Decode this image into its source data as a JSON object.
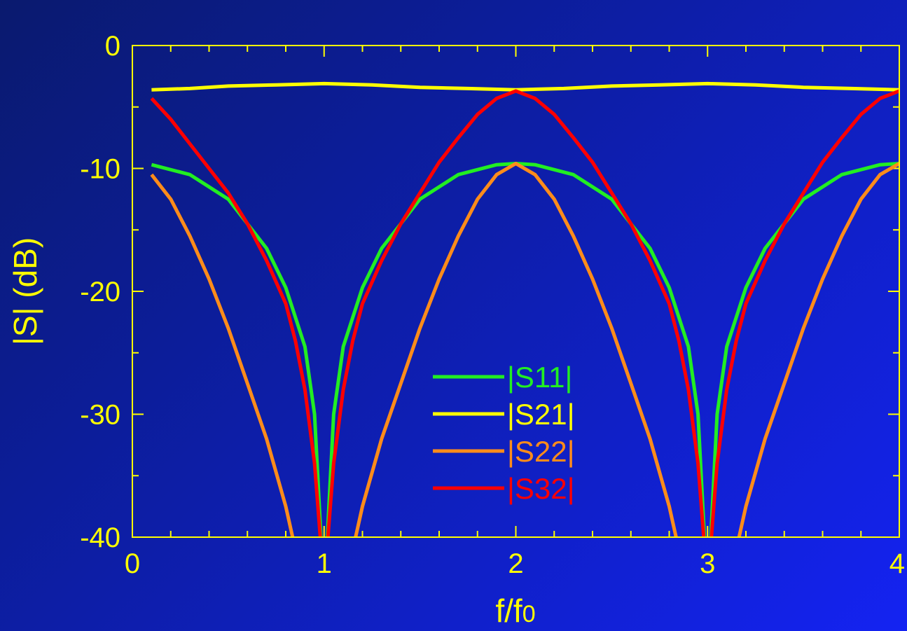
{
  "chart_data": {
    "type": "line",
    "title": "",
    "xlabel": "f/f",
    "xlabel_sub": "0",
    "ylabel": "|S| (dB)",
    "xlim": [
      0,
      4
    ],
    "ylim": [
      -40,
      0
    ],
    "x_ticks": [
      0,
      1,
      2,
      3,
      4
    ],
    "x_tick_labels": [
      "0",
      "1",
      "2",
      "3",
      "4"
    ],
    "y_ticks": [
      0,
      -10,
      -20,
      -30,
      -40
    ],
    "y_tick_labels": [
      "0",
      "-10",
      "-20",
      "-30",
      "-40"
    ],
    "grid": false,
    "legend_position": "center",
    "colors": {
      "axis": "#ffff00",
      "s11": "#22ee22",
      "s21": "#ffff00",
      "s22": "#ff8c1a",
      "s32": "#ff0000"
    },
    "series": [
      {
        "name": "|S11|",
        "key": "s11",
        "x": [
          0.1,
          0.3,
          0.5,
          0.7,
          0.8,
          0.9,
          0.95,
          1.0,
          1.05,
          1.1,
          1.2,
          1.3,
          1.5,
          1.7,
          1.9,
          2.0,
          2.1,
          2.3,
          2.5,
          2.7,
          2.8,
          2.9,
          2.95,
          3.0,
          3.05,
          3.1,
          3.2,
          3.3,
          3.5,
          3.7,
          3.9,
          4.0
        ],
        "y": [
          -9.7,
          -10.5,
          -12.5,
          -16.5,
          -19.7,
          -24.5,
          -30.0,
          -45.0,
          -30.0,
          -24.5,
          -19.7,
          -16.5,
          -12.5,
          -10.5,
          -9.7,
          -9.6,
          -9.7,
          -10.5,
          -12.5,
          -16.5,
          -19.7,
          -24.5,
          -30.0,
          -45.0,
          -30.0,
          -24.5,
          -19.7,
          -16.5,
          -12.5,
          -10.5,
          -9.7,
          -9.6
        ]
      },
      {
        "name": "|S21|",
        "key": "s21",
        "x": [
          0.1,
          0.3,
          0.5,
          0.75,
          1.0,
          1.25,
          1.5,
          1.75,
          2.0,
          2.25,
          2.5,
          2.75,
          3.0,
          3.25,
          3.5,
          3.75,
          4.0
        ],
        "y": [
          -3.6,
          -3.5,
          -3.3,
          -3.2,
          -3.1,
          -3.2,
          -3.4,
          -3.5,
          -3.6,
          -3.5,
          -3.3,
          -3.2,
          -3.1,
          -3.2,
          -3.4,
          -3.5,
          -3.6
        ]
      },
      {
        "name": "|S22|",
        "key": "s22",
        "x": [
          0.1,
          0.2,
          0.3,
          0.4,
          0.5,
          0.6,
          0.7,
          0.8,
          0.85,
          1.15,
          1.2,
          1.3,
          1.4,
          1.5,
          1.6,
          1.7,
          1.8,
          1.9,
          2.0,
          2.1,
          2.2,
          2.3,
          2.4,
          2.5,
          2.6,
          2.7,
          2.8,
          2.85,
          3.15,
          3.2,
          3.3,
          3.4,
          3.5,
          3.6,
          3.7,
          3.8,
          3.9,
          4.0
        ],
        "y": [
          -10.5,
          -12.5,
          -15.5,
          -19.0,
          -23.0,
          -27.5,
          -32.0,
          -37.5,
          -41.0,
          -41.0,
          -37.5,
          -32.0,
          -27.5,
          -23.0,
          -19.0,
          -15.5,
          -12.5,
          -10.5,
          -9.6,
          -10.5,
          -12.5,
          -15.5,
          -19.0,
          -23.0,
          -27.5,
          -32.0,
          -37.5,
          -41.0,
          -41.0,
          -37.5,
          -32.0,
          -27.5,
          -23.0,
          -19.0,
          -15.5,
          -12.5,
          -10.5,
          -9.6
        ]
      },
      {
        "name": "|S32|",
        "key": "s32",
        "x": [
          0.1,
          0.2,
          0.3,
          0.4,
          0.5,
          0.6,
          0.7,
          0.8,
          0.85,
          0.9,
          0.95,
          0.98,
          1.0,
          1.02,
          1.05,
          1.1,
          1.15,
          1.2,
          1.3,
          1.4,
          1.5,
          1.6,
          1.7,
          1.8,
          1.9,
          2.0,
          2.1,
          2.2,
          2.3,
          2.4,
          2.5,
          2.6,
          2.7,
          2.8,
          2.85,
          2.9,
          2.95,
          2.98,
          3.0,
          3.02,
          3.05,
          3.1,
          3.15,
          3.2,
          3.3,
          3.4,
          3.5,
          3.6,
          3.7,
          3.8,
          3.9,
          4.0
        ],
        "y": [
          -4.3,
          -6.0,
          -8.0,
          -10.0,
          -12.0,
          -14.5,
          -17.5,
          -21.0,
          -24.0,
          -28.0,
          -34.0,
          -40.0,
          -45.0,
          -40.0,
          -34.0,
          -28.0,
          -24.0,
          -21.0,
          -17.5,
          -14.5,
          -12.0,
          -9.5,
          -7.5,
          -5.6,
          -4.3,
          -3.7,
          -4.3,
          -5.6,
          -7.5,
          -9.5,
          -12.0,
          -14.5,
          -17.5,
          -21.0,
          -24.0,
          -28.0,
          -34.0,
          -40.0,
          -45.0,
          -40.0,
          -34.0,
          -28.0,
          -24.0,
          -21.0,
          -17.5,
          -14.5,
          -12.0,
          -9.5,
          -7.5,
          -5.6,
          -4.3,
          -3.7
        ]
      }
    ]
  }
}
